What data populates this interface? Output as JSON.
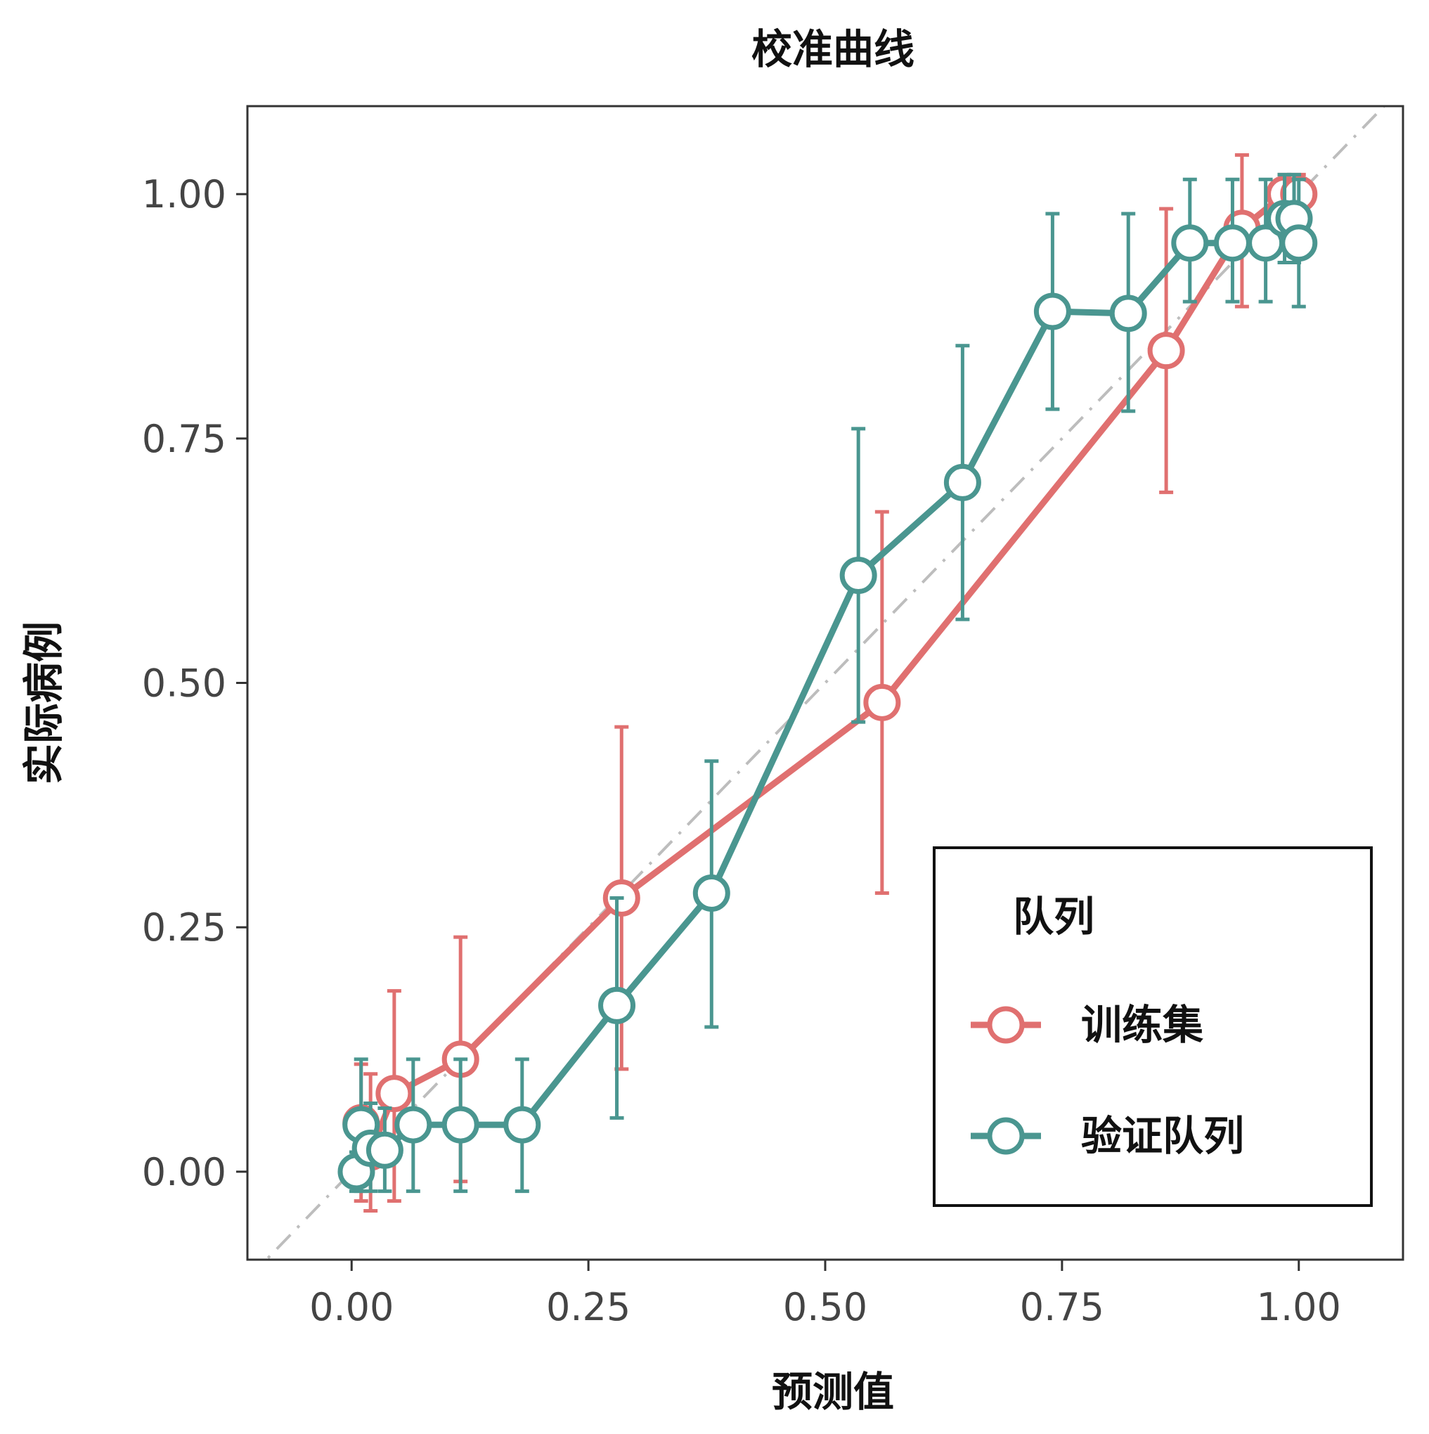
{
  "chart_data": {
    "type": "line",
    "title": "校准曲线",
    "xlabel": "预测值",
    "ylabel": "实际病例",
    "xlim": [
      -0.11,
      1.11
    ],
    "ylim": [
      -0.09,
      1.09
    ],
    "x_ticks": [
      "0.00",
      "0.25",
      "0.50",
      "0.75",
      "1.00"
    ],
    "y_ticks": [
      "0.00",
      "0.25",
      "0.50",
      "0.75",
      "1.00"
    ],
    "grid": false,
    "reference_line": {
      "style": "dash-dot",
      "color": "#bdbdbd",
      "slope": 1,
      "intercept": 0
    },
    "legend": {
      "title": "队列",
      "placement": "bottom-right"
    },
    "series": [
      {
        "name": "训练集",
        "color": "#e07070",
        "points": [
          {
            "x": 0.01,
            "y": 0.05,
            "lo": -0.03,
            "hi": 0.11
          },
          {
            "x": 0.02,
            "y": 0.02,
            "lo": -0.04,
            "hi": 0.1
          },
          {
            "x": 0.045,
            "y": 0.08,
            "lo": -0.03,
            "hi": 0.185
          },
          {
            "x": 0.115,
            "y": 0.115,
            "lo": -0.01,
            "hi": 0.24
          },
          {
            "x": 0.285,
            "y": 0.28,
            "lo": 0.105,
            "hi": 0.455
          },
          {
            "x": 0.56,
            "y": 0.48,
            "lo": 0.285,
            "hi": 0.675
          },
          {
            "x": 0.86,
            "y": 0.84,
            "lo": 0.695,
            "hi": 0.985
          },
          {
            "x": 0.94,
            "y": 0.965,
            "lo": 0.885,
            "hi": 1.04
          },
          {
            "x": 0.985,
            "y": 1.0,
            "lo": 0.96,
            "hi": 1.02
          },
          {
            "x": 1.0,
            "y": 1.0,
            "lo": 0.98,
            "hi": 1.02
          }
        ]
      },
      {
        "name": "验证队列",
        "color": "#4a9690",
        "points": [
          {
            "x": 0.005,
            "y": 0.0,
            "lo": -0.02,
            "hi": 0.02
          },
          {
            "x": 0.01,
            "y": 0.048,
            "lo": -0.02,
            "hi": 0.115
          },
          {
            "x": 0.02,
            "y": 0.024,
            "lo": -0.02,
            "hi": 0.07
          },
          {
            "x": 0.035,
            "y": 0.022,
            "lo": -0.02,
            "hi": 0.065
          },
          {
            "x": 0.065,
            "y": 0.048,
            "lo": -0.02,
            "hi": 0.115
          },
          {
            "x": 0.115,
            "y": 0.048,
            "lo": -0.02,
            "hi": 0.115
          },
          {
            "x": 0.18,
            "y": 0.048,
            "lo": -0.02,
            "hi": 0.115
          },
          {
            "x": 0.28,
            "y": 0.17,
            "lo": 0.055,
            "hi": 0.28
          },
          {
            "x": 0.38,
            "y": 0.285,
            "lo": 0.148,
            "hi": 0.42
          },
          {
            "x": 0.535,
            "y": 0.61,
            "lo": 0.46,
            "hi": 0.76
          },
          {
            "x": 0.645,
            "y": 0.705,
            "lo": 0.565,
            "hi": 0.845
          },
          {
            "x": 0.74,
            "y": 0.88,
            "lo": 0.78,
            "hi": 0.98
          },
          {
            "x": 0.82,
            "y": 0.878,
            "lo": 0.778,
            "hi": 0.98
          },
          {
            "x": 0.885,
            "y": 0.95,
            "lo": 0.89,
            "hi": 1.015
          },
          {
            "x": 0.93,
            "y": 0.95,
            "lo": 0.89,
            "hi": 1.015
          },
          {
            "x": 0.965,
            "y": 0.95,
            "lo": 0.89,
            "hi": 1.015
          },
          {
            "x": 0.985,
            "y": 0.975,
            "lo": 0.93,
            "hi": 1.02
          },
          {
            "x": 0.995,
            "y": 0.975,
            "lo": 0.93,
            "hi": 1.02
          },
          {
            "x": 1.0,
            "y": 0.95,
            "lo": 0.885,
            "hi": 1.015
          }
        ]
      }
    ]
  }
}
